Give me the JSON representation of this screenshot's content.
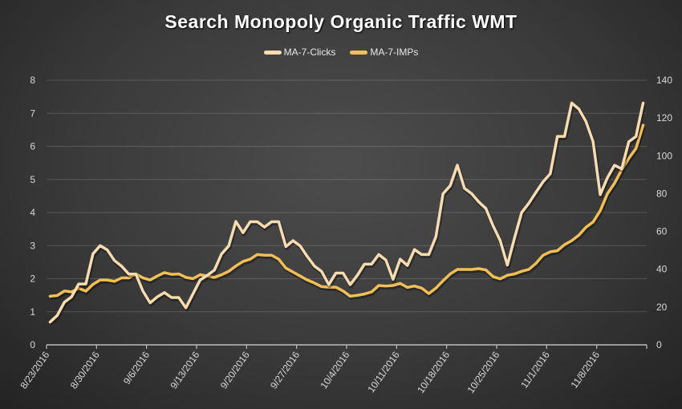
{
  "chart_data": {
    "type": "line",
    "title": "Search Monopoly Organic Traffic WMT",
    "legend_position": "top",
    "grid": true,
    "x_tick_labels": [
      "8/23/2016",
      "8/30/2016",
      "9/6/2016",
      "9/13/2016",
      "9/20/2016",
      "9/27/2016",
      "10/4/2016",
      "10/11/2016",
      "10/18/2016",
      "10/25/2016",
      "11/1/2016",
      "11/8/2016"
    ],
    "y_left": {
      "ylim": [
        0,
        8
      ],
      "ticks": [
        "0",
        "1",
        "2",
        "3",
        "4",
        "5",
        "6",
        "7",
        "8"
      ]
    },
    "y_right": {
      "ylim": [
        0,
        140
      ],
      "ticks": [
        "0",
        "20",
        "40",
        "60",
        "80",
        "100",
        "120",
        "140"
      ]
    },
    "series": [
      {
        "name": "MA-7-Clicks",
        "axis": "left",
        "color": "#f7dcb0",
        "values": [
          0.69,
          0.89,
          1.29,
          1.45,
          1.84,
          1.84,
          2.75,
          3.0,
          2.87,
          2.55,
          2.38,
          2.14,
          2.14,
          1.62,
          1.27,
          1.45,
          1.58,
          1.43,
          1.43,
          1.12,
          1.54,
          1.96,
          2.1,
          2.26,
          2.75,
          2.99,
          3.73,
          3.39,
          3.72,
          3.72,
          3.56,
          3.72,
          3.72,
          2.97,
          3.15,
          2.99,
          2.67,
          2.38,
          2.22,
          1.82,
          2.17,
          2.17,
          1.82,
          2.1,
          2.44,
          2.44,
          2.73,
          2.56,
          1.98,
          2.59,
          2.4,
          2.88,
          2.73,
          2.73,
          3.27,
          4.57,
          4.81,
          5.43,
          4.73,
          4.57,
          4.32,
          4.12,
          3.6,
          3.15,
          2.41,
          3.23,
          4.0,
          4.28,
          4.61,
          4.93,
          5.17,
          6.3,
          6.3,
          7.31,
          7.13,
          6.75,
          6.14,
          4.54,
          5.05,
          5.43,
          5.32,
          6.14,
          6.3,
          7.31
        ]
      },
      {
        "name": "MA-7-IMPs",
        "axis": "right",
        "color": "#f2bf55",
        "values": [
          25.7,
          26.1,
          28.5,
          28,
          29.9,
          28.4,
          32,
          34.3,
          34.3,
          33.6,
          35.4,
          35.4,
          37.5,
          35.4,
          34.3,
          36.4,
          38.2,
          37.3,
          37.5,
          35.7,
          35,
          37.1,
          36.4,
          35.7,
          37.1,
          38.9,
          41.7,
          44.1,
          45.3,
          47.8,
          47.4,
          47.4,
          45.3,
          40.6,
          38.5,
          36.4,
          34.3,
          32.7,
          30.8,
          30.5,
          30.5,
          28.5,
          25.7,
          26.2,
          26.9,
          28,
          31.4,
          31.1,
          31.4,
          32.5,
          30.4,
          31.1,
          30,
          27.1,
          30,
          33.9,
          37.5,
          39.9,
          39.9,
          39.9,
          40.3,
          39.6,
          36.1,
          34.9,
          36.8,
          37.5,
          38.9,
          39.9,
          43.1,
          47.4,
          49.2,
          49.8,
          53,
          55.1,
          58,
          62.2,
          65,
          71,
          79.9,
          85.5,
          92.6,
          98.7,
          103.9,
          116.2
        ]
      }
    ]
  }
}
